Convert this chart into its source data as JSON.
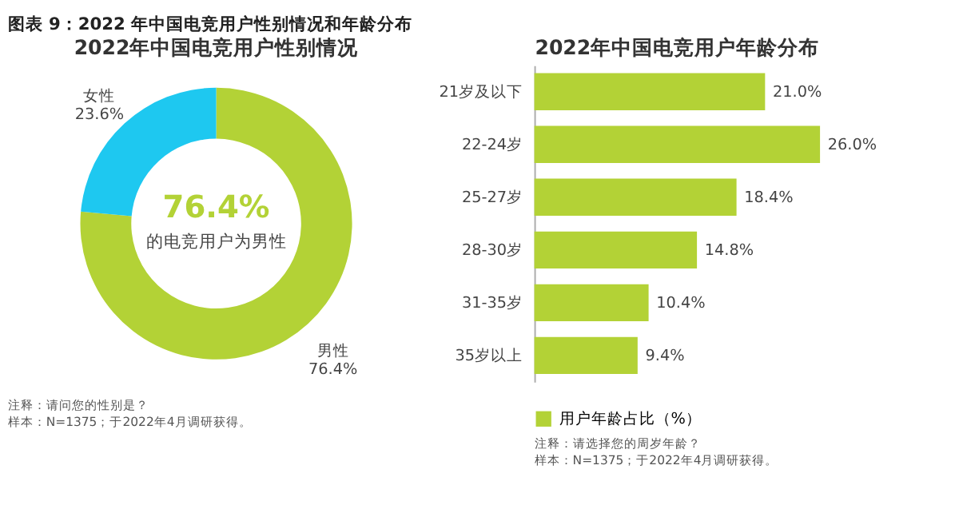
{
  "chart_data": [
    {
      "type": "donut",
      "title": "2022年中国电竞用户性别情况",
      "categories": [
        "男性",
        "女性"
      ],
      "values": [
        76.4,
        23.6
      ],
      "colors": [
        "#b3d236",
        "#1ec8f0"
      ],
      "value_labels": [
        "76.4%",
        "23.6%"
      ],
      "annotations": [
        "图表 9：2022 年中国电竞用户性别情况和年龄分布",
        "76.4%",
        "的电竞用户为男性",
        "注释：请问您的性别是？",
        "样本：N=1375；于2022年4月调研获得。"
      ]
    },
    {
      "type": "bar",
      "orientation": "horizontal",
      "title": "2022年中国电竞用户年龄分布",
      "categories": [
        "21岁及以下",
        "22-24岁",
        "25-27岁",
        "28-30岁",
        "31-35岁",
        "35岁以上"
      ],
      "series": [
        {
          "name": "用户年龄占比（%）",
          "color": "#b3d236",
          "values": [
            21.0,
            26.0,
            18.4,
            14.8,
            10.4,
            9.4
          ],
          "value_labels": [
            "21.0%",
            "26.0%",
            "18.4%",
            "14.8%",
            "10.4%",
            "9.4%"
          ]
        }
      ],
      "legend": "bottom",
      "tick_labels": "y",
      "annotations": [
        "注释：请选择您的周岁年龄？",
        "样本：N=1375；于2022年4月调研获得。"
      ]
    }
  ]
}
